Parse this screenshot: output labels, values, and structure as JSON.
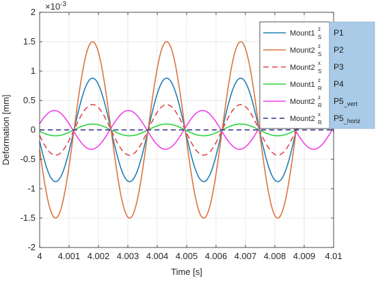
{
  "chart_data": {
    "type": "line",
    "xlabel": "Time [s]",
    "ylabel": "Deformation [mm]",
    "y_exponent_label": "×10",
    "y_exponent_power": "-3",
    "xlim": [
      4.0,
      4.01
    ],
    "ylim": [
      -2,
      2
    ],
    "grid": true,
    "legend_position": "top-right",
    "x_ticks": [
      "4",
      "4.001",
      "4.002",
      "4.003",
      "4.004",
      "4.005",
      "4.006",
      "4.007",
      "4.008",
      "4.009",
      "4.01"
    ],
    "y_ticks": [
      "-2",
      "-1.5",
      "-1",
      "-0.5",
      "0",
      "0.5",
      "1",
      "1.5",
      "2"
    ],
    "signal_period_s": 0.00252,
    "series": [
      {
        "name": "Mount1",
        "sup": "z",
        "sub": "S",
        "tag": "P1",
        "tag_main": "P1",
        "tag_sub": "",
        "color": "#1f7eb4",
        "dash": "",
        "width": 1.6,
        "amplitude": 0.88,
        "phase_peak_time": 4.0018
      },
      {
        "name": "Mount2",
        "sup": "z",
        "sub": "S",
        "tag": "P2",
        "tag_main": "P2",
        "tag_sub": "",
        "color": "#d9733e",
        "dash": "",
        "width": 1.6,
        "amplitude": 1.5,
        "phase_peak_time": 4.0018
      },
      {
        "name": "Mount2",
        "sup": "x",
        "sub": "S",
        "tag": "P3",
        "tag_main": "P3",
        "tag_sub": "",
        "color": "#e0464a",
        "dash": "8,5",
        "width": 1.6,
        "amplitude": 0.43,
        "phase_peak_time": 4.0018
      },
      {
        "name": "Mount1",
        "sup": "z",
        "sub": "R",
        "tag": "P4",
        "tag_main": "P4",
        "tag_sub": "",
        "color": "#2bd43a",
        "dash": "",
        "width": 1.6,
        "amplitude": 0.1,
        "phase_peak_time": 4.0018
      },
      {
        "name": "Mount2",
        "sup": "z",
        "sub": "R",
        "tag": "P5_vert",
        "tag_main": "P5",
        "tag_sub": "_vert",
        "color": "#ee3fe6",
        "dash": "",
        "width": 1.6,
        "amplitude": 0.33,
        "phase_peak_time": 4.0005
      },
      {
        "name": "Mount2",
        "sup": "x",
        "sub": "R",
        "tag": "P5_horiz",
        "tag_main": "P5",
        "tag_sub": "_horiz",
        "color": "#2a2a8c",
        "dash": "7,5",
        "width": 1.4,
        "amplitude": 0.0,
        "phase_peak_time": 4.0018
      }
    ]
  },
  "colors": {
    "grid": "#e2e2e2",
    "axes": "#262626",
    "tag_panel": "#a9cbe7"
  }
}
